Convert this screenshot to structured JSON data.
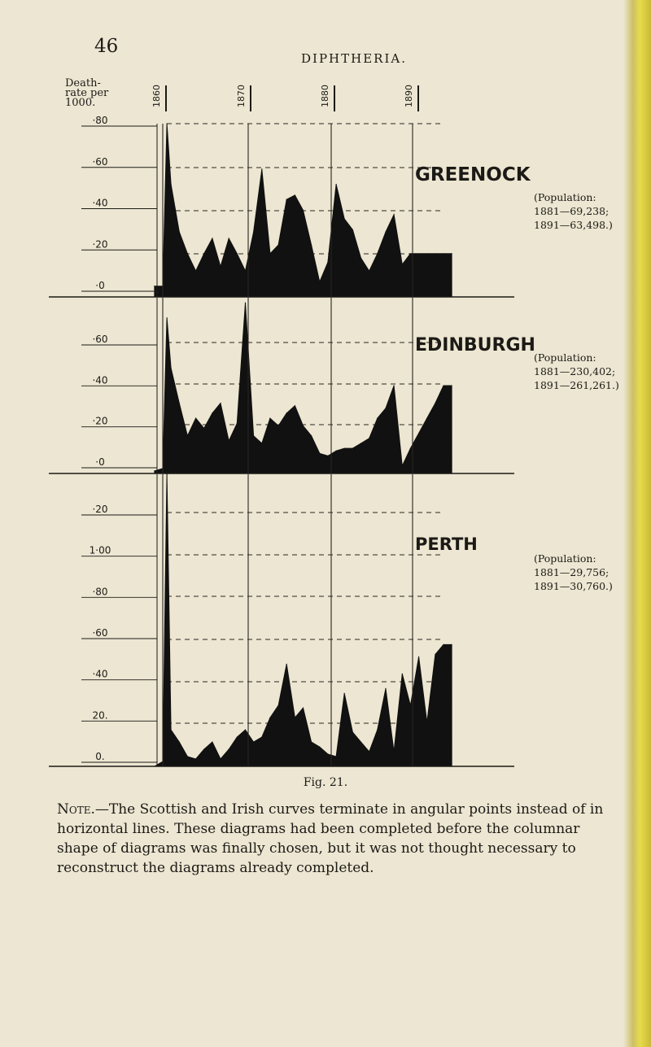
{
  "header": {
    "page_number": "46",
    "running_title": "DIPHTHERIA."
  },
  "chart_data": {
    "type": "area",
    "y_title": [
      "Death-",
      "rate per",
      "1000."
    ],
    "x_ticks": [
      "1860",
      "1870",
      "1880",
      "1890"
    ],
    "panels": [
      {
        "name": "GREENOCK",
        "population": [
          "(Population:",
          "1881—69,238;",
          "1891—63,498.)"
        ],
        "y_ticks": [
          "·80",
          "·60",
          "·40",
          "·20",
          "·0"
        ],
        "ylim": [
          0,
          0.8
        ],
        "series": {
          "x": [
            1859,
            1860,
            1860.5,
            1861,
            1862,
            1863,
            1864,
            1865,
            1866,
            1867,
            1868,
            1869,
            1870,
            1871,
            1872,
            1873,
            1874,
            1875,
            1876,
            1877,
            1878,
            1879,
            1880,
            1881,
            1882,
            1883,
            1884,
            1885,
            1886,
            1887,
            1888,
            1889,
            1890,
            1891,
            1892,
            1893,
            1894,
            1895
          ],
          "y": [
            0.05,
            0.05,
            0.8,
            0.52,
            0.3,
            0.2,
            0.12,
            0.2,
            0.27,
            0.14,
            0.27,
            0.2,
            0.12,
            0.3,
            0.59,
            0.2,
            0.24,
            0.45,
            0.47,
            0.4,
            0.24,
            0.07,
            0.16,
            0.52,
            0.36,
            0.31,
            0.18,
            0.12,
            0.2,
            0.3,
            0.38,
            0.15,
            0.2,
            0.2,
            0.2,
            0.2,
            0.2,
            0.2
          ]
        }
      },
      {
        "name": "EDINBURGH",
        "population": [
          "(Population:",
          "1881—230,402;",
          "1891—261,261.)"
        ],
        "y_ticks": [
          "·60",
          "·40",
          "·20",
          "·0"
        ],
        "ylim": [
          0,
          0.7
        ],
        "series": {
          "x": [
            1859,
            1860,
            1860.5,
            1861,
            1862,
            1863,
            1864,
            1865,
            1866,
            1867,
            1868,
            1869,
            1870,
            1871,
            1872,
            1873,
            1874,
            1875,
            1876,
            1877,
            1878,
            1879,
            1880,
            1881,
            1882,
            1883,
            1884,
            1885,
            1886,
            1887,
            1888,
            1889,
            1890,
            1891,
            1892,
            1893,
            1894,
            1895
          ],
          "y": [
            0.01,
            0.02,
            0.62,
            0.42,
            0.28,
            0.15,
            0.22,
            0.18,
            0.24,
            0.28,
            0.13,
            0.2,
            0.68,
            0.15,
            0.12,
            0.22,
            0.19,
            0.24,
            0.27,
            0.19,
            0.15,
            0.08,
            0.07,
            0.09,
            0.1,
            0.1,
            0.12,
            0.14,
            0.22,
            0.26,
            0.35,
            0.03,
            0.1,
            0.16,
            0.22,
            0.28,
            0.35,
            0.35
          ]
        }
      },
      {
        "name": "PERTH",
        "population": [
          "(Population:",
          "1881—29,756;",
          "1891—30,760.)"
        ],
        "y_ticks": [
          "·20",
          "1·00",
          "·80",
          "·60",
          "·40",
          "20.",
          "0."
        ],
        "ylim": [
          0,
          1.2
        ],
        "series": {
          "x": [
            1859,
            1860,
            1860.5,
            1861,
            1862,
            1863,
            1864,
            1865,
            1866,
            1867,
            1868,
            1869,
            1870,
            1871,
            1872,
            1873,
            1874,
            1875,
            1876,
            1877,
            1878,
            1879,
            1880,
            1881,
            1882,
            1883,
            1884,
            1885,
            1886,
            1887,
            1888,
            1889,
            1890,
            1891,
            1892,
            1893,
            1894,
            1895
          ],
          "y": [
            0,
            0.02,
            1.2,
            0.15,
            0.1,
            0.04,
            0.03,
            0.07,
            0.1,
            0.03,
            0.07,
            0.12,
            0.15,
            0.1,
            0.12,
            0.2,
            0.25,
            0.42,
            0.2,
            0.24,
            0.1,
            0.08,
            0.05,
            0.04,
            0.3,
            0.14,
            0.1,
            0.06,
            0.15,
            0.32,
            0.06,
            0.38,
            0.25,
            0.45,
            0.18,
            0.46,
            0.5,
            0.5
          ]
        }
      }
    ]
  },
  "caption": "Fig. 21.",
  "note": {
    "lead": "Note.",
    "text": "—The Scottish and Irish curves terminate in angular points instead of in horizontal lines. These diagrams had been completed before the columnar shape of diagrams was finally chosen, but it was not thought necessary to reconstruct the diagrams already completed."
  },
  "colors": {
    "fill": "#111111",
    "paper": "#ece6d2",
    "ink": "#1c1a16"
  }
}
